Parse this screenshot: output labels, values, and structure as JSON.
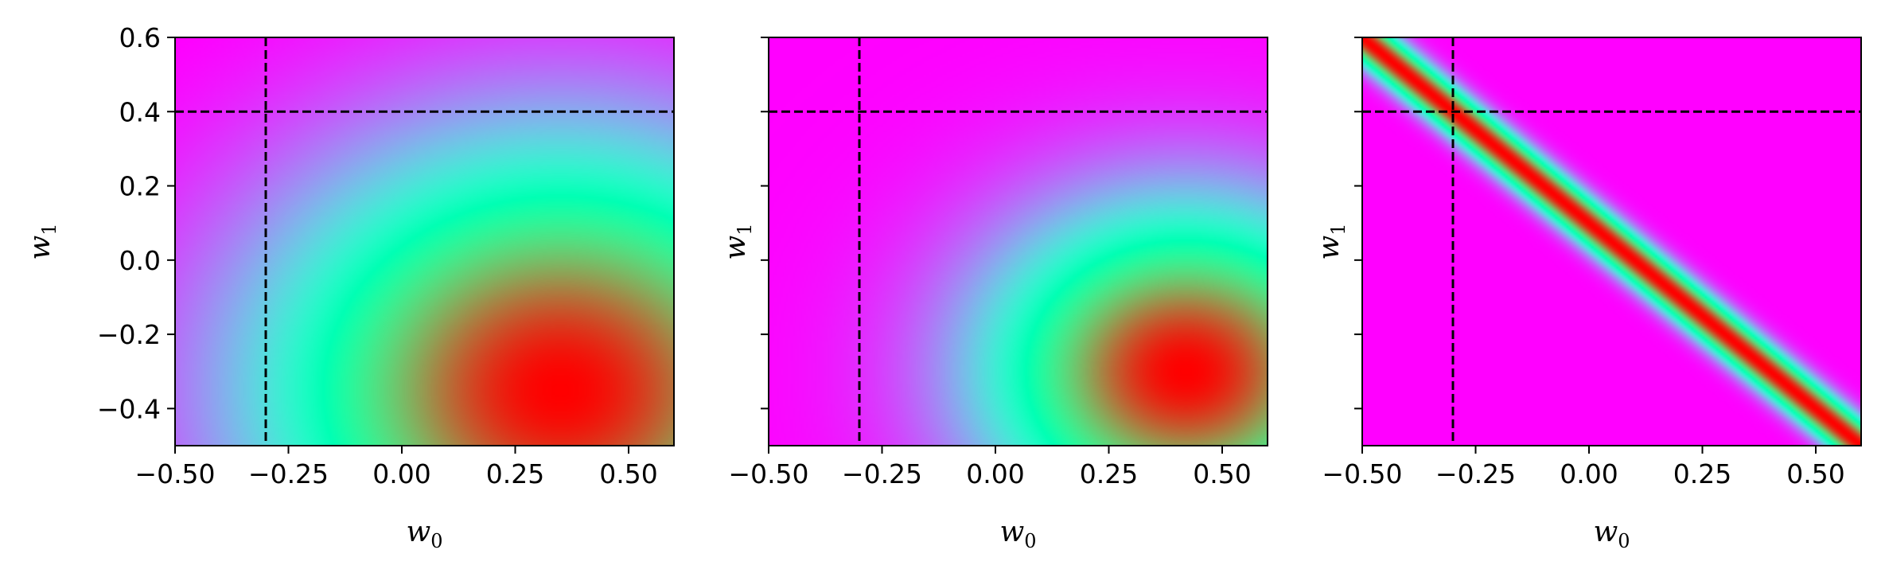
{
  "chart_data": [
    {
      "type": "heatmap",
      "title": "",
      "xlabel": "w0",
      "ylabel": "w1",
      "x_label_main": "w",
      "x_label_sub": "0",
      "y_label_main": "w",
      "y_label_sub": "1",
      "xlim": [
        -0.5,
        0.6
      ],
      "ylim": [
        -0.5,
        0.6
      ],
      "xticks": [
        -0.5,
        -0.25,
        0.0,
        0.25,
        0.5
      ],
      "xtick_labels": [
        "−0.50",
        "−0.25",
        "0.00",
        "0.25",
        "0.50"
      ],
      "yticks": [
        -0.4,
        -0.2,
        0.0,
        0.2,
        0.4,
        0.6
      ],
      "ytick_labels": [
        "−0.4",
        "−0.2",
        "0.0",
        "0.2",
        "0.4",
        "0.6"
      ],
      "show_ytick_labels": true,
      "colormap": "rainbow",
      "distribution": {
        "kind": "gaussian",
        "mean": [
          0.35,
          -0.35
        ],
        "std": [
          0.45,
          0.45
        ],
        "rho": 0.0
      },
      "reference_lines": {
        "w0": -0.3,
        "w1": 0.4,
        "style": "dashed"
      }
    },
    {
      "type": "heatmap",
      "title": "",
      "xlabel": "w0",
      "ylabel": "w1",
      "x_label_main": "w",
      "x_label_sub": "0",
      "y_label_main": "w",
      "y_label_sub": "1",
      "xlim": [
        -0.5,
        0.6
      ],
      "ylim": [
        -0.5,
        0.6
      ],
      "xticks": [
        -0.5,
        -0.25,
        0.0,
        0.25,
        0.5
      ],
      "xtick_labels": [
        "−0.50",
        "−0.25",
        "0.00",
        "0.25",
        "0.50"
      ],
      "yticks": [
        -0.4,
        -0.2,
        0.0,
        0.2,
        0.4,
        0.6
      ],
      "ytick_labels": [
        "",
        "",
        "",
        "",
        "",
        ""
      ],
      "show_ytick_labels": false,
      "colormap": "rainbow",
      "distribution": {
        "kind": "gaussian",
        "mean": [
          0.42,
          -0.3
        ],
        "std": [
          0.3,
          0.3
        ],
        "rho": 0.0
      },
      "reference_lines": {
        "w0": -0.3,
        "w1": 0.4,
        "style": "dashed"
      }
    },
    {
      "type": "heatmap",
      "title": "",
      "xlabel": "w0",
      "ylabel": "w1",
      "x_label_main": "w",
      "x_label_sub": "0",
      "y_label_main": "w",
      "y_label_sub": "1",
      "xlim": [
        -0.5,
        0.6
      ],
      "ylim": [
        -0.5,
        0.6
      ],
      "xticks": [
        -0.5,
        -0.25,
        0.0,
        0.25,
        0.5
      ],
      "xtick_labels": [
        "−0.50",
        "−0.25",
        "0.00",
        "0.25",
        "0.50"
      ],
      "yticks": [
        -0.4,
        -0.2,
        0.0,
        0.2,
        0.4,
        0.6
      ],
      "ytick_labels": [
        "",
        "",
        "",
        "",
        "",
        ""
      ],
      "show_ytick_labels": false,
      "colormap": "rainbow",
      "distribution": {
        "kind": "ridge",
        "line_intercept": 0.1,
        "line_slope": -1.0,
        "perp_std": 0.035,
        "peak": [
          0.27,
          -0.17
        ],
        "along_std": 0.35
      },
      "reference_lines": {
        "w0": -0.3,
        "w1": 0.4,
        "style": "dashed"
      }
    }
  ]
}
